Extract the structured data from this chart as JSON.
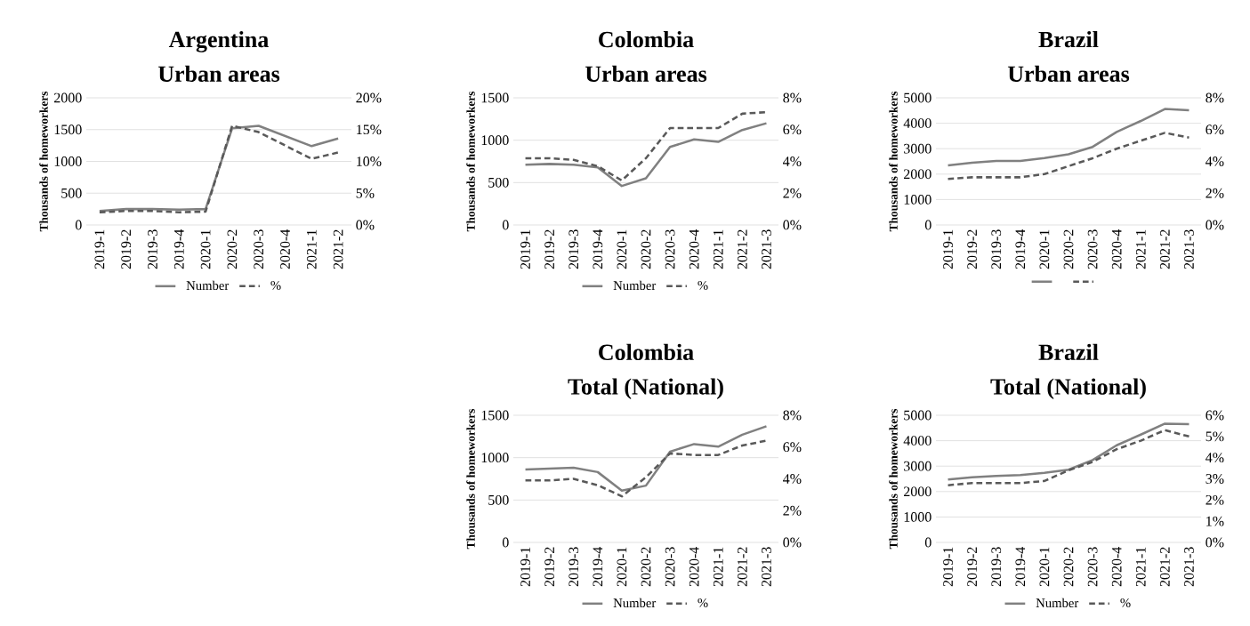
{
  "chart_data": [
    {
      "type": "line",
      "title": "Argentina",
      "subtitle": "Urban areas",
      "ylabel": "Thousands of homeworkers",
      "categories": [
        "2019-1",
        "2019-2",
        "2019-3",
        "2019-4",
        "2020-1",
        "2020-2",
        "2020-3",
        "2020-4",
        "2021-1",
        "2021-2"
      ],
      "series": [
        {
          "name": "Number",
          "color": "#808080",
          "line_style": "solid",
          "values": [
            220,
            250,
            250,
            240,
            250,
            1520,
            1560,
            1400,
            1240,
            1360
          ]
        },
        {
          "name": "%",
          "color": "#595959",
          "line_style": "dashed",
          "axis": "y2",
          "values": [
            2.0,
            2.2,
            2.2,
            2.0,
            2.1,
            15.6,
            14.6,
            12.5,
            10.4,
            11.4
          ]
        }
      ],
      "ylim": [
        0,
        2000
      ],
      "yticks": [
        0,
        500,
        1000,
        1500,
        2000
      ],
      "y2lim": [
        0,
        20
      ],
      "y2ticks": [
        {
          "value": 0,
          "label": "0%"
        },
        {
          "value": 5,
          "label": "5%"
        },
        {
          "value": 10,
          "label": "10%"
        },
        {
          "value": 15,
          "label": "15%"
        },
        {
          "value": 20,
          "label": "20%"
        }
      ],
      "grid": "y",
      "legend": "bottom"
    },
    {
      "type": "line",
      "title": "Colombia",
      "subtitle": "Urban areas",
      "ylabel": "Thousands of homeworkers",
      "categories": [
        "2019-1",
        "2019-2",
        "2019-3",
        "2019-4",
        "2020-1",
        "2020-2",
        "2020-3",
        "2020-4",
        "2021-1",
        "2021-2",
        "2021-3"
      ],
      "series": [
        {
          "name": "Number",
          "color": "#808080",
          "line_style": "solid",
          "values": [
            710,
            720,
            710,
            680,
            460,
            550,
            920,
            1010,
            980,
            1120,
            1200
          ]
        },
        {
          "name": "%",
          "color": "#595959",
          "line_style": "dashed",
          "axis": "y2",
          "values": [
            4.2,
            4.2,
            4.1,
            3.7,
            2.8,
            4.2,
            6.1,
            6.1,
            6.1,
            7.0,
            7.1
          ]
        }
      ],
      "ylim": [
        0,
        1500
      ],
      "yticks": [
        0,
        500,
        1000,
        1500
      ],
      "y2lim": [
        0,
        8
      ],
      "y2ticks": [
        {
          "value": 0,
          "label": "0%"
        },
        {
          "value": 2,
          "label": "2%"
        },
        {
          "value": 4,
          "label": "4%"
        },
        {
          "value": 6,
          "label": "6%"
        },
        {
          "value": 8,
          "label": "8%"
        }
      ],
      "grid": "y",
      "legend": "bottom"
    },
    {
      "type": "line",
      "title": "Brazil",
      "subtitle": "Urban areas",
      "ylabel": "Thousands of homeworkers",
      "categories": [
        "2019-1",
        "2019-2",
        "2019-3",
        "2019-4",
        "2020-1",
        "2020-2",
        "2020-3",
        "2020-4",
        "2021-1",
        "2021-2",
        "2021-3"
      ],
      "series": [
        {
          "color": "#808080",
          "line_style": "solid",
          "values": [
            2340,
            2450,
            2520,
            2520,
            2630,
            2780,
            3070,
            3660,
            4090,
            4560,
            4510
          ]
        },
        {
          "color": "#595959",
          "line_style": "dashed",
          "axis": "y2",
          "values": [
            2.9,
            3.0,
            3.0,
            3.0,
            3.2,
            3.7,
            4.2,
            4.8,
            5.3,
            5.8,
            5.5
          ]
        }
      ],
      "ylim": [
        0,
        5000
      ],
      "yticks": [
        0,
        1000,
        2000,
        3000,
        4000,
        5000
      ],
      "y2lim": [
        0,
        8
      ],
      "y2ticks": [
        {
          "value": 0,
          "label": "0%"
        },
        {
          "value": 2,
          "label": "2%"
        },
        {
          "value": 4,
          "label": "4%"
        },
        {
          "value": 6,
          "label": "6%"
        },
        {
          "value": 8,
          "label": "8%"
        }
      ],
      "grid": "y",
      "legend": "bottom"
    },
    {
      "type": "line",
      "title": "Colombia",
      "subtitle": "Total (National)",
      "ylabel": "Thousands of homeworkers",
      "categories": [
        "2019-1",
        "2019-2",
        "2019-3",
        "2019-4",
        "2020-1",
        "2020-2",
        "2020-3",
        "2020-4",
        "2021-1",
        "2021-2",
        "2021-3"
      ],
      "series": [
        {
          "name": "Number",
          "color": "#808080",
          "line_style": "solid",
          "values": [
            860,
            870,
            880,
            830,
            610,
            670,
            1070,
            1160,
            1130,
            1270,
            1370
          ]
        },
        {
          "name": "%",
          "color": "#595959",
          "line_style": "dashed",
          "axis": "y2",
          "values": [
            3.9,
            3.9,
            4.0,
            3.6,
            2.9,
            4.1,
            5.6,
            5.5,
            5.5,
            6.1,
            6.4
          ]
        }
      ],
      "ylim": [
        0,
        1500
      ],
      "yticks": [
        0,
        500,
        1000,
        1500
      ],
      "y2lim": [
        0,
        8
      ],
      "y2ticks": [
        {
          "value": 0,
          "label": "0%"
        },
        {
          "value": 2,
          "label": "2%"
        },
        {
          "value": 4,
          "label": "4%"
        },
        {
          "value": 6,
          "label": "6%"
        },
        {
          "value": 8,
          "label": "8%"
        }
      ],
      "grid": "y",
      "legend": "bottom"
    },
    {
      "type": "line",
      "title": "Brazil",
      "subtitle": "Total (National)",
      "ylabel": "Thousands of homeworkers",
      "categories": [
        "2019-1",
        "2019-2",
        "2019-3",
        "2019-4",
        "2020-1",
        "2020-2",
        "2020-3",
        "2020-4",
        "2021-1",
        "2021-2",
        "2021-3"
      ],
      "series": [
        {
          "name": "Number",
          "color": "#808080",
          "line_style": "solid",
          "values": [
            2470,
            2560,
            2610,
            2650,
            2740,
            2860,
            3240,
            3820,
            4240,
            4670,
            4650
          ]
        },
        {
          "name": "%",
          "color": "#595959",
          "line_style": "dashed",
          "axis": "y2",
          "values": [
            2.7,
            2.8,
            2.8,
            2.8,
            2.9,
            3.4,
            3.8,
            4.4,
            4.8,
            5.3,
            5.0
          ]
        }
      ],
      "ylim": [
        0,
        5000
      ],
      "yticks": [
        0,
        1000,
        2000,
        3000,
        4000,
        5000
      ],
      "y2lim": [
        0,
        6
      ],
      "y2ticks": [
        {
          "value": 0,
          "label": "0%"
        },
        {
          "value": 1,
          "label": "1%"
        },
        {
          "value": 2,
          "label": "2%"
        },
        {
          "value": 3,
          "label": "3%"
        },
        {
          "value": 4,
          "label": "4%"
        },
        {
          "value": 5,
          "label": "5%"
        },
        {
          "value": 6,
          "label": "6%"
        }
      ],
      "grid": "y",
      "legend": "bottom"
    }
  ]
}
